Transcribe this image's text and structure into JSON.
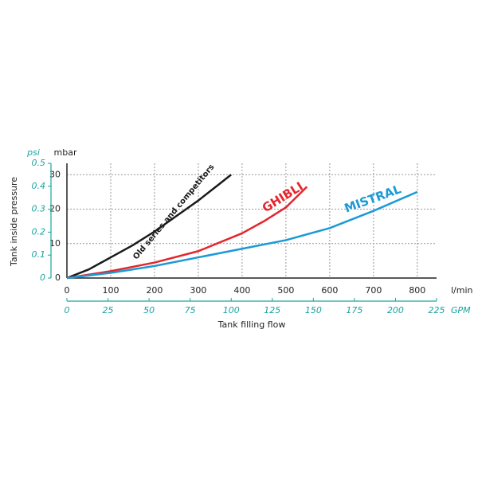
{
  "chart_data": {
    "type": "line",
    "x_label": "Tank filling flow",
    "y_label": "Tank inside pressure",
    "x_unit": "l/min",
    "x2_unit": "GPM",
    "y_unit": "mbar",
    "y2_unit": "psi",
    "xlim": [
      0,
      844
    ],
    "xticks": [
      0,
      100,
      200,
      300,
      400,
      500,
      600,
      700,
      800
    ],
    "x2lim": [
      0,
      225
    ],
    "x2ticks": [
      0,
      25,
      50,
      75,
      100,
      125,
      150,
      175,
      200,
      225
    ],
    "ylim": [
      0,
      33.3
    ],
    "yticks": [
      0,
      10,
      20,
      30
    ],
    "y2lim": [
      0,
      0.5
    ],
    "y2ticks": [
      0,
      0.1,
      0.2,
      0.3,
      0.4,
      0.5
    ],
    "grid": true,
    "series": [
      {
        "name": "Old series and competitors",
        "color": "#1a1a1a",
        "x": [
          0,
          50,
          100,
          150,
          200,
          250,
          300,
          350,
          375
        ],
        "values": [
          0,
          2.5,
          6,
          9.5,
          13.5,
          18,
          22.5,
          27.5,
          30
        ]
      },
      {
        "name": "GHIBLI",
        "color": "#e3262d",
        "x": [
          0,
          100,
          200,
          300,
          400,
          450,
          500,
          548
        ],
        "values": [
          0,
          2,
          4.5,
          7.8,
          13,
          16.5,
          20.5,
          26.5
        ]
      },
      {
        "name": "MISTRAL",
        "color": "#1b9ad6",
        "x": [
          0,
          100,
          200,
          300,
          400,
          500,
          600,
          700,
          800
        ],
        "values": [
          0,
          1.5,
          3.5,
          6,
          8.5,
          11,
          14.5,
          19.5,
          25
        ]
      }
    ]
  }
}
